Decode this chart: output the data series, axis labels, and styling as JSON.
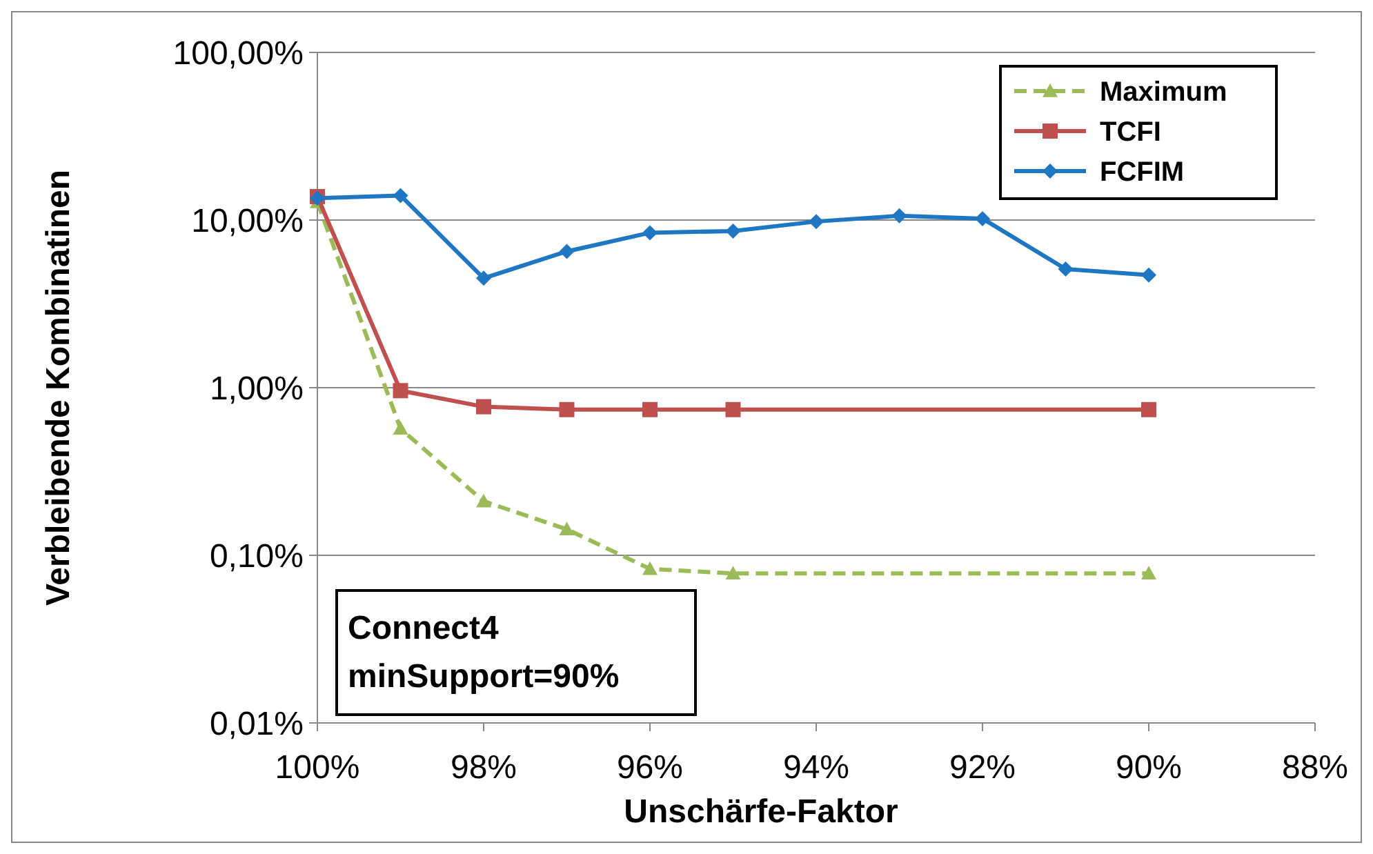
{
  "chart_data": {
    "type": "line",
    "xlabel": "Unschärfe-Faktor",
    "ylabel": "Verbleibende Kombinatinen",
    "log": "y",
    "grid": "y",
    "legend": "top right",
    "xlim": [
      100,
      88
    ],
    "xticks": [
      {
        "value": 100,
        "label": "100%"
      },
      {
        "value": 98,
        "label": "98%"
      },
      {
        "value": 96,
        "label": "96%"
      },
      {
        "value": 94,
        "label": "94%"
      },
      {
        "value": 92,
        "label": "92%"
      },
      {
        "value": 90,
        "label": "90%"
      },
      {
        "value": 88,
        "label": "88%"
      }
    ],
    "ylim": [
      0.01,
      100
    ],
    "yticks": [
      {
        "value": 0.01,
        "label": "0,01%"
      },
      {
        "value": 0.1,
        "label": "0,10%"
      },
      {
        "value": 1,
        "label": "1,00%"
      },
      {
        "value": 10,
        "label": "10,00%"
      },
      {
        "value": 100,
        "label": "100,00%"
      }
    ],
    "annotations": [
      "Connect4\nminSupport=90%"
    ],
    "series": [
      {
        "name": "Maximum",
        "color": "#9bbb59",
        "marker": "triangle",
        "line_style": "dashed",
        "x": [
          100,
          99,
          98,
          97,
          96,
          95,
          90
        ],
        "values": [
          12.8,
          0.57,
          0.21,
          0.143,
          0.083,
          0.078,
          0.078
        ]
      },
      {
        "name": "TCFI",
        "color": "#c0504d",
        "marker": "square",
        "line_style": "solid",
        "x": [
          100,
          99,
          98,
          97,
          96,
          95,
          90
        ],
        "values": [
          13.8,
          0.96,
          0.77,
          0.74,
          0.74,
          0.74,
          0.74
        ]
      },
      {
        "name": "FCFIM",
        "color": "#1f77c4",
        "marker": "diamond",
        "line_style": "solid",
        "x": [
          100,
          99,
          98,
          97,
          96,
          95,
          94,
          93,
          92,
          91,
          90
        ],
        "values": [
          13.5,
          14,
          4.5,
          6.5,
          8.4,
          8.6,
          9.8,
          10.6,
          10.2,
          5.1,
          4.7
        ]
      }
    ]
  }
}
